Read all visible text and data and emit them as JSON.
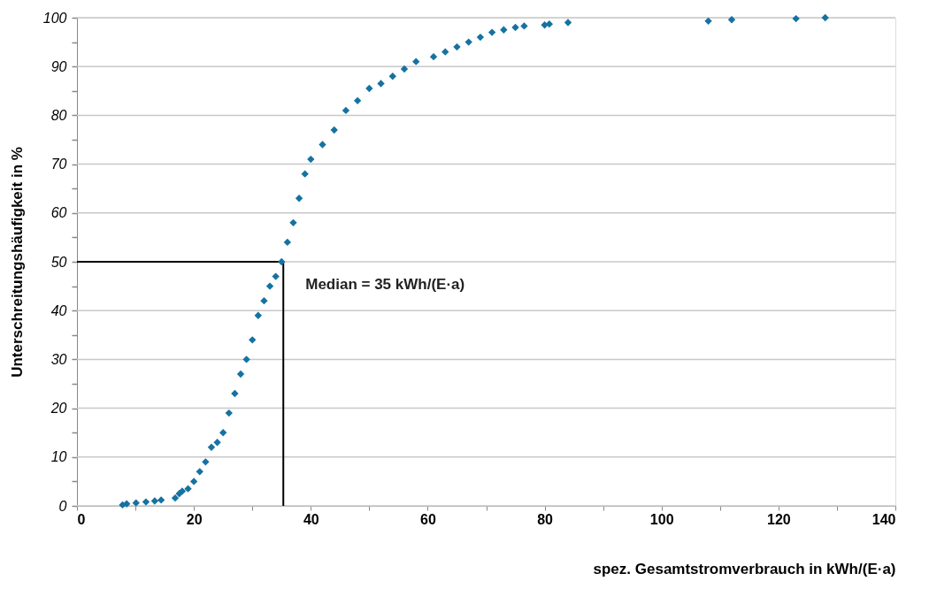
{
  "chart_data": {
    "type": "scatter",
    "xlabel": "spez. Gesamtstromverbrauch in kWh/(E·a)",
    "ylabel": "Unterschreitungshäufigkeit in %",
    "x": [
      7.8,
      8.5,
      10.1,
      11.8,
      13.3,
      14.4,
      16.8,
      17.5,
      18,
      19,
      20,
      21,
      22,
      23,
      24,
      25,
      26,
      27,
      28,
      29,
      30,
      31,
      32,
      33,
      34,
      35,
      36,
      37,
      38,
      39,
      40,
      42,
      44,
      46,
      48,
      50,
      52,
      54,
      56,
      58,
      61,
      63,
      65,
      67,
      69,
      71,
      73,
      75,
      76.5,
      80,
      80.8,
      84,
      108,
      112,
      123,
      128
    ],
    "series": [
      {
        "color": "#1572a1",
        "values": [
          0.2,
          0.4,
          0.6,
          0.8,
          1,
          1.2,
          1.6,
          2.5,
          3,
          3.5,
          5,
          7,
          9,
          12,
          13,
          15,
          19,
          23,
          27,
          30,
          34,
          39,
          42,
          45,
          47,
          50,
          54,
          58,
          63,
          68,
          71,
          74,
          77,
          81,
          83,
          85.5,
          86.5,
          88,
          89.5,
          91,
          92,
          93,
          94,
          95,
          96,
          97,
          97.5,
          98,
          98.3,
          98.5,
          98.7,
          99,
          99.3,
          99.6,
          99.8,
          100
        ]
      }
    ],
    "marker": "diamond",
    "xlim": [
      0,
      140
    ],
    "ylim": [
      0,
      100
    ],
    "xticks": [
      0,
      {
        "value": 10,
        "label": null
      },
      20,
      {
        "value": 30,
        "label": null
      },
      40,
      {
        "value": 50,
        "label": null
      },
      60,
      {
        "value": 70,
        "label": null
      },
      80,
      {
        "value": 90,
        "label": null
      },
      100,
      {
        "value": 110,
        "label": null
      },
      120,
      {
        "value": 130,
        "label": null
      },
      140
    ],
    "yticks": [
      0,
      {
        "value": 5,
        "label": null
      },
      10,
      {
        "value": 15,
        "label": null
      },
      20,
      {
        "value": 25,
        "label": null
      },
      30,
      {
        "value": 35,
        "label": null
      },
      40,
      {
        "value": 45,
        "label": null
      },
      50,
      {
        "value": 55,
        "label": null
      },
      60,
      {
        "value": 65,
        "label": null
      },
      70,
      {
        "value": 75,
        "label": null
      },
      80,
      {
        "value": 85,
        "label": null
      },
      90,
      {
        "value": 95,
        "label": null
      },
      100
    ],
    "grid": "y",
    "ref_lines": [
      {
        "axis": "x",
        "value": 35.3,
        "color": "#000000"
      },
      {
        "axis": "y",
        "value": 50,
        "color": "#000000"
      }
    ],
    "annotations": [
      "Median = 35 kWh/(E·a)"
    ]
  }
}
